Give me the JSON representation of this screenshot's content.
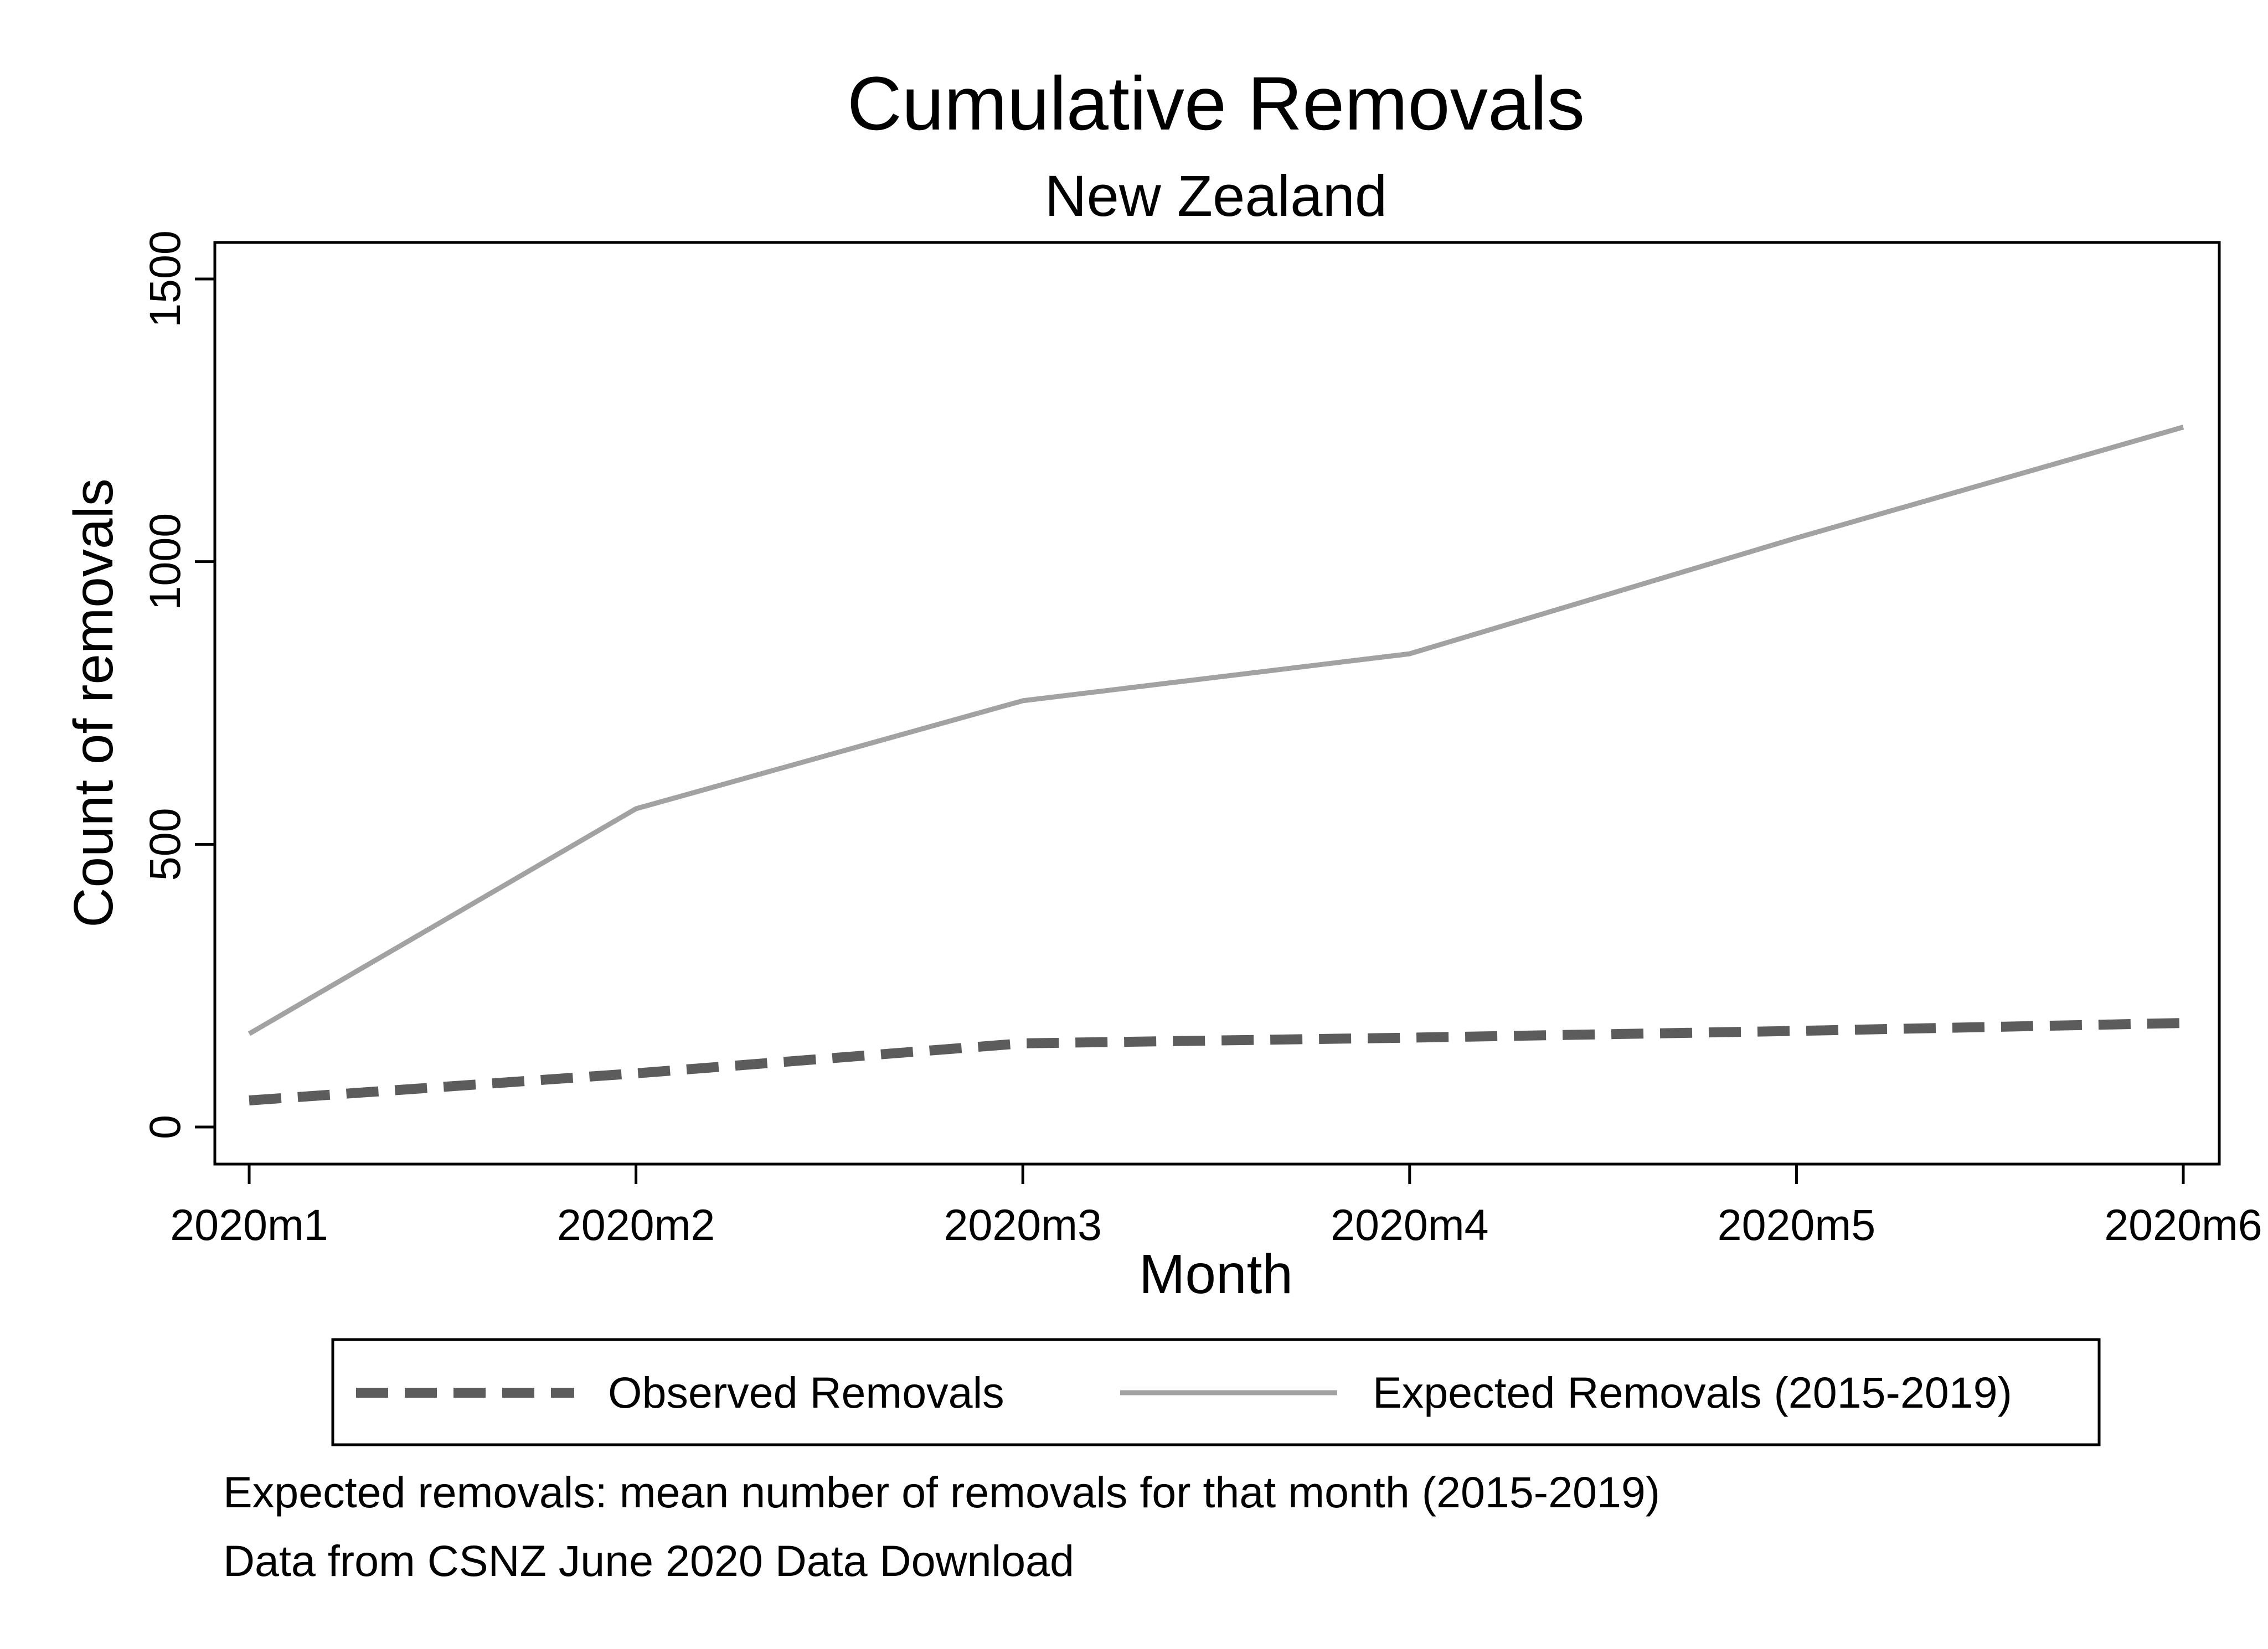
{
  "chart_data": {
    "type": "line",
    "title": "Cumulative Removals",
    "subtitle": "New Zealand",
    "xlabel": "Month",
    "ylabel": "Count of removals",
    "categories": [
      "2020m1",
      "2020m2",
      "2020m3",
      "2020m4",
      "2020m5",
      "2020m6"
    ],
    "yticks": [
      "0",
      "500",
      "1000",
      "1500"
    ],
    "ylim": [
      0,
      1500
    ],
    "grid": false,
    "legend": "bottom",
    "series": [
      {
        "name": "Observed Removals",
        "values": [
          47,
          95,
          148,
          158,
          170,
          184
        ],
        "color": "#5c5c5c",
        "style": "dashed"
      },
      {
        "name": "Expected Removals (2015-2019)",
        "values": [
          165,
          563,
          754,
          837,
          1042,
          1238
        ],
        "color": "#a2a2a2",
        "style": "solid"
      }
    ],
    "notes": [
      "Expected removals: mean number of removals for that month (2015-2019)",
      "Data from CSNZ June 2020 Data Download"
    ]
  }
}
